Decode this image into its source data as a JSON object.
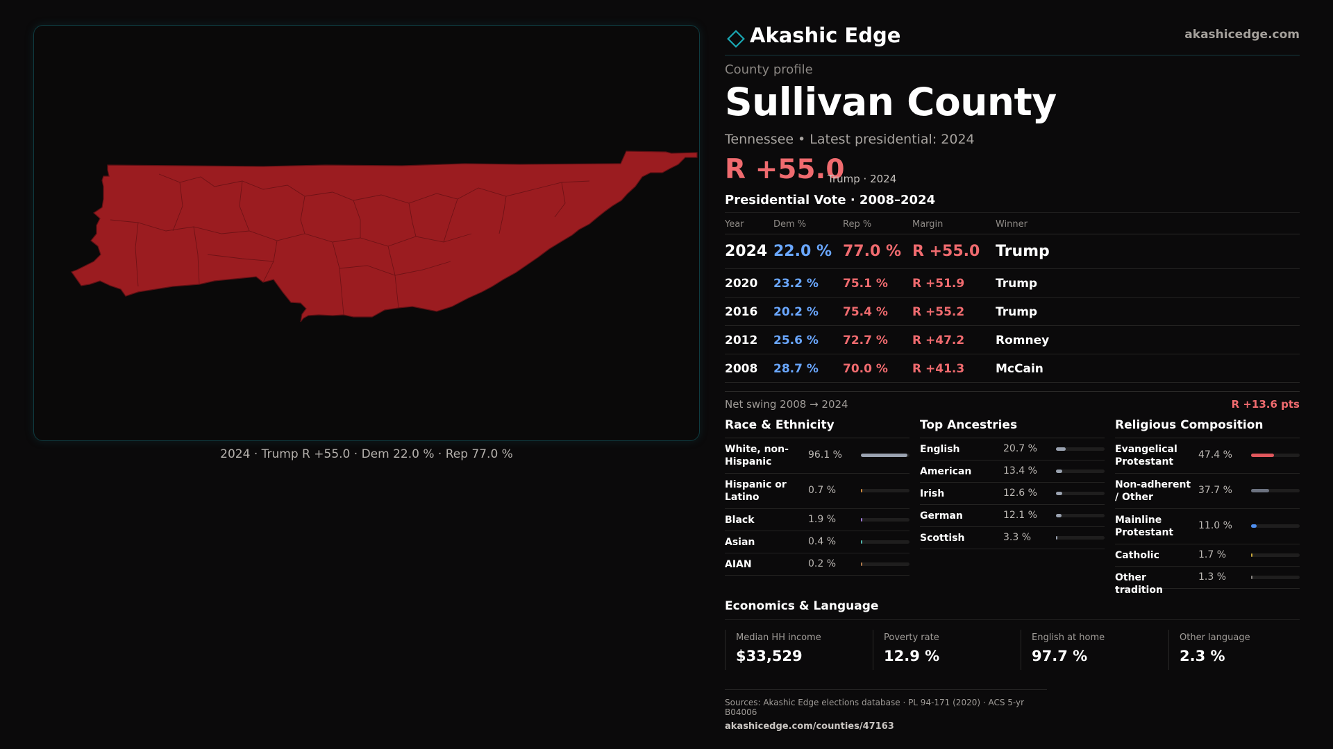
{
  "brand": {
    "name": "Akashic Edge",
    "url": "akashicedge.com"
  },
  "profile": {
    "kicker": "County profile",
    "county": "Sullivan County",
    "subtitle": "Tennessee • Latest presidential: 2024",
    "margin": "R +55.0",
    "margin_note": "Trump · 2024"
  },
  "map": {
    "caption": "2024 · Trump R +55.0 · Dem 22.0 % · Rep 77.0 %",
    "fill_color": "#9b1c20",
    "border_color": "#0f3b40"
  },
  "vote": {
    "section_title": "Presidential Vote · 2008–2024",
    "headers": {
      "year": "Year",
      "dem": "Dem %",
      "rep": "Rep %",
      "margin": "Margin",
      "winner": "Winner"
    },
    "rows": [
      {
        "year": "2024",
        "dem": "22.0 %",
        "rep": "77.0 %",
        "margin": "R +55.0",
        "winner": "Trump"
      },
      {
        "year": "2020",
        "dem": "23.2 %",
        "rep": "75.1 %",
        "margin": "R +51.9",
        "winner": "Trump"
      },
      {
        "year": "2016",
        "dem": "20.2 %",
        "rep": "75.4 %",
        "margin": "R +55.2",
        "winner": "Trump"
      },
      {
        "year": "2012",
        "dem": "25.6 %",
        "rep": "72.7 %",
        "margin": "R +47.2",
        "winner": "Romney"
      },
      {
        "year": "2008",
        "dem": "28.7 %",
        "rep": "70.0 %",
        "margin": "R +41.3",
        "winner": "McCain"
      }
    ],
    "swing_label": "Net swing 2008 → 2024",
    "swing_value": "R +13.6 pts"
  },
  "race": {
    "title": "Race & Ethnicity",
    "items": [
      {
        "label": "White, non-Hispanic",
        "value": "96.1 %",
        "pct": 96.1,
        "color": "#9aa2b0"
      },
      {
        "label": "Hispanic or Latino",
        "value": "0.7 %",
        "pct": 0.7,
        "color": "#d08a3a"
      },
      {
        "label": "Black",
        "value": "1.9 %",
        "pct": 1.9,
        "color": "#a07ad8"
      },
      {
        "label": "Asian",
        "value": "0.4 %",
        "pct": 0.4,
        "color": "#4fb3a8"
      },
      {
        "label": "AIAN",
        "value": "0.2 %",
        "pct": 0.2,
        "color": "#b07a4a"
      }
    ]
  },
  "ancestry": {
    "title": "Top Ancestries",
    "items": [
      {
        "label": "English",
        "value": "20.7 %",
        "pct": 20.7,
        "color": "#9aa2b0"
      },
      {
        "label": "American",
        "value": "13.4 %",
        "pct": 13.4,
        "color": "#9aa2b0"
      },
      {
        "label": "Irish",
        "value": "12.6 %",
        "pct": 12.6,
        "color": "#9aa2b0"
      },
      {
        "label": "German",
        "value": "12.1 %",
        "pct": 12.1,
        "color": "#9aa2b0"
      },
      {
        "label": "Scottish",
        "value": "3.3 %",
        "pct": 3.3,
        "color": "#9aa2b0"
      }
    ]
  },
  "religion": {
    "title": "Religious Composition",
    "items": [
      {
        "label": "Evangelical Protestant",
        "value": "47.4 %",
        "pct": 47.4,
        "color": "#e0575c"
      },
      {
        "label": "Non-adherent / Other",
        "value": "37.7 %",
        "pct": 37.7,
        "color": "#6c7280"
      },
      {
        "label": "Mainline Protestant",
        "value": "11.0 %",
        "pct": 11.0,
        "color": "#4f8ff0"
      },
      {
        "label": "Catholic",
        "value": "1.7 %",
        "pct": 1.7,
        "color": "#c9a83a"
      },
      {
        "label": "Other tradition",
        "value": "1.3 %",
        "pct": 1.3,
        "color": "#8a8682"
      }
    ]
  },
  "economics": {
    "title": "Economics & Language",
    "cards": [
      {
        "label": "Median HH income",
        "value": "$33,529"
      },
      {
        "label": "Poverty rate",
        "value": "12.9 %"
      },
      {
        "label": "English at home",
        "value": "97.7 %"
      },
      {
        "label": "Other language",
        "value": "2.3 %"
      }
    ]
  },
  "sources": {
    "line": "Sources: Akashic Edge elections database · PL 94-171 (2020) · ACS 5-yr B04006",
    "url": "akashicedge.com/counties/47163"
  }
}
